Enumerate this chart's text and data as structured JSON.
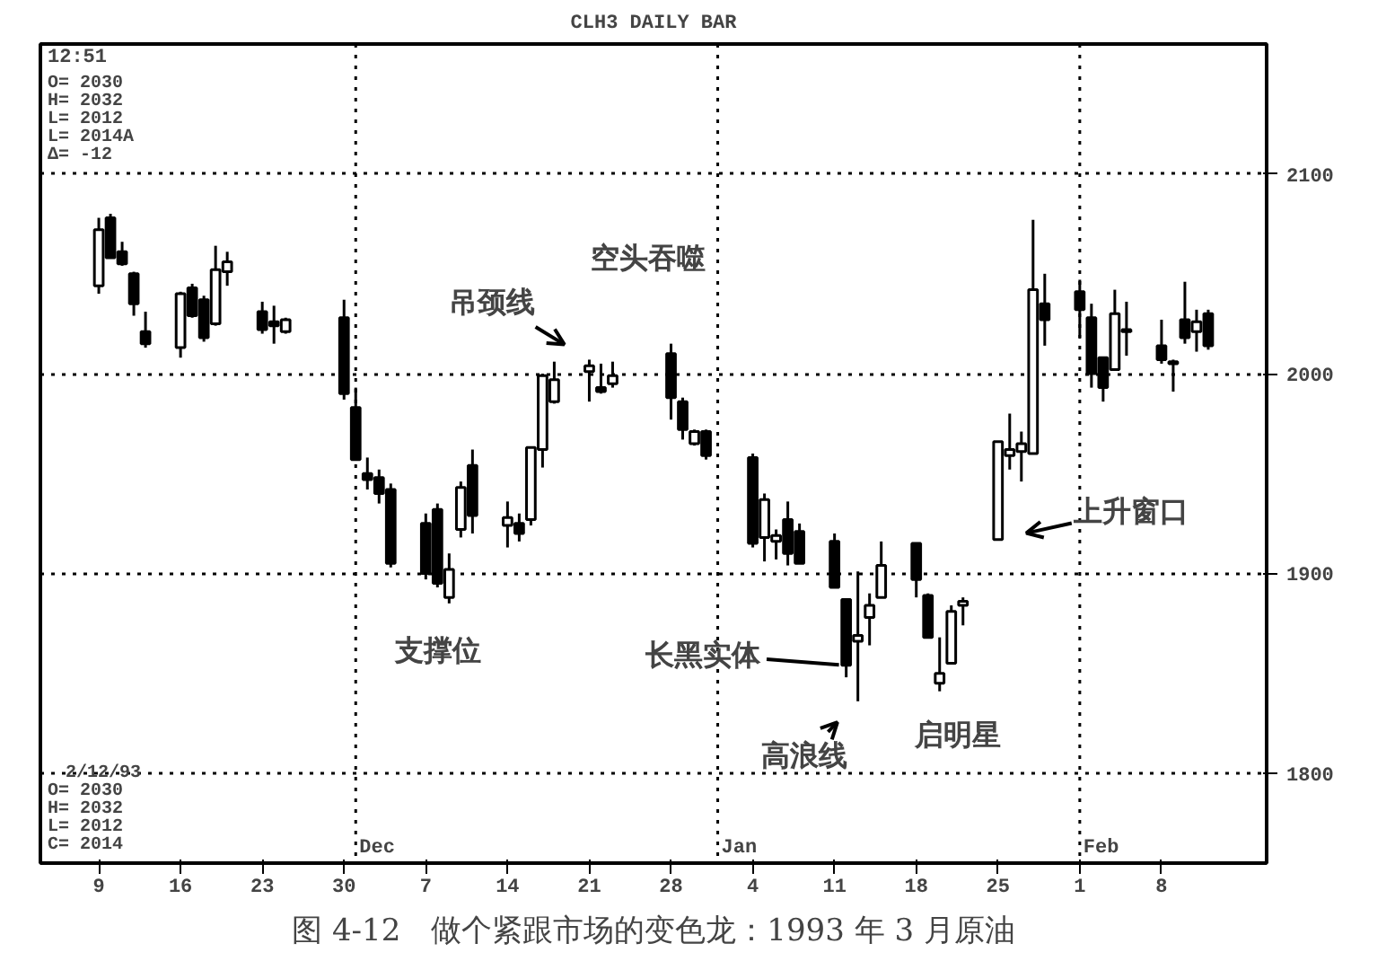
{
  "chart_data": {
    "type": "candlestick",
    "title": "CLH3 DAILY BAR",
    "subtitle": "图 4-12　做个紧跟市场的变色龙：1993 年 3 月原油",
    "x": [
      "1992-11-09",
      "1992-11-10",
      "1992-11-11",
      "1992-11-12",
      "1992-11-13",
      "1992-11-16",
      "1992-11-17",
      "1992-11-18",
      "1992-11-19",
      "1992-11-20",
      "1992-11-23",
      "1992-11-24",
      "1992-11-25",
      "1992-11-30",
      "1992-12-01",
      "1992-12-02",
      "1992-12-03",
      "1992-12-04",
      "1992-12-07",
      "1992-12-08",
      "1992-12-09",
      "1992-12-10",
      "1992-12-11",
      "1992-12-14",
      "1992-12-15",
      "1992-12-16",
      "1992-12-17",
      "1992-12-18",
      "1992-12-21",
      "1992-12-22",
      "1992-12-23",
      "1992-12-28",
      "1992-12-29",
      "1992-12-30",
      "1992-12-31",
      "1993-01-04",
      "1993-01-05",
      "1993-01-06",
      "1993-01-07",
      "1993-01-08",
      "1993-01-11",
      "1993-01-12",
      "1993-01-13",
      "1993-01-14",
      "1993-01-15",
      "1993-01-18",
      "1993-01-19",
      "1993-01-20",
      "1993-01-21",
      "1993-01-22",
      "1993-01-25",
      "1993-01-26",
      "1993-01-27",
      "1993-01-28",
      "1993-01-29",
      "1993-02-01",
      "1993-02-02",
      "1993-02-03",
      "1993-02-04",
      "1993-02-05",
      "1993-02-08",
      "1993-02-09",
      "1993-02-10",
      "1993-02-11",
      "1993-02-12"
    ],
    "ohlc": [
      [
        2044,
        2078,
        2040,
        2072
      ],
      [
        2078,
        2080,
        2058,
        2058
      ],
      [
        2061,
        2066,
        2054,
        2055
      ],
      [
        2050,
        2051,
        2029,
        2035
      ],
      [
        2021,
        2031,
        2013,
        2015
      ],
      [
        2013,
        2041,
        2008,
        2040
      ],
      [
        2043,
        2045,
        2028,
        2029
      ],
      [
        2037,
        2039,
        2016,
        2018
      ],
      [
        2025,
        2064,
        2024,
        2052
      ],
      [
        2051,
        2061,
        2044,
        2056
      ],
      [
        2031,
        2036,
        2020,
        2022
      ],
      [
        2026,
        2034,
        2015,
        2024
      ],
      [
        2021,
        2028,
        2020,
        2027
      ],
      [
        2028,
        2037,
        1987,
        1990
      ],
      [
        1983,
        1993,
        1957,
        1957
      ],
      [
        1950,
        1958,
        1942,
        1947
      ],
      [
        1948,
        1952,
        1935,
        1940
      ],
      [
        1942,
        1945,
        1903,
        1905
      ],
      [
        1925,
        1930,
        1897,
        1900
      ],
      [
        1932,
        1935,
        1893,
        1895
      ],
      [
        1888,
        1910,
        1885,
        1902
      ],
      [
        1922,
        1946,
        1918,
        1943
      ],
      [
        1954,
        1962,
        1920,
        1929
      ],
      [
        1924,
        1936,
        1913,
        1928
      ],
      [
        1925,
        1930,
        1916,
        1920
      ],
      [
        1927,
        1963,
        1924,
        1963
      ],
      [
        1962,
        2000,
        1953,
        1999
      ],
      [
        1986,
        2006,
        1985,
        1997
      ],
      [
        2001,
        2007,
        1986,
        2004
      ],
      [
        1993,
        2005,
        1990,
        1991
      ],
      [
        1995,
        2006,
        1993,
        1999
      ],
      [
        2010,
        2015,
        1977,
        1988
      ],
      [
        1986,
        1988,
        1967,
        1972
      ],
      [
        1965,
        1972,
        1964,
        1971
      ],
      [
        1971,
        1972,
        1957,
        1959
      ],
      [
        1958,
        1960,
        1913,
        1915
      ],
      [
        1918,
        1940,
        1906,
        1937
      ],
      [
        1916,
        1922,
        1907,
        1919
      ],
      [
        1927,
        1936,
        1904,
        1910
      ],
      [
        1921,
        1925,
        1905,
        1905
      ],
      [
        1916,
        1920,
        1893,
        1893
      ],
      [
        1887,
        1887,
        1848,
        1854
      ],
      [
        1866,
        1901,
        1836,
        1869
      ],
      [
        1878,
        1890,
        1864,
        1884
      ],
      [
        1888,
        1916,
        1888,
        1904
      ],
      [
        1915,
        1915,
        1888,
        1897
      ],
      [
        1889,
        1890,
        1868,
        1868
      ],
      [
        1845,
        1868,
        1841,
        1850
      ],
      [
        1855,
        1884,
        1855,
        1881
      ],
      [
        1884,
        1888,
        1874,
        1886
      ],
      [
        1917,
        1966,
        1917,
        1966
      ],
      [
        1959,
        1980,
        1952,
        1962
      ],
      [
        1961,
        1971,
        1946,
        1965
      ],
      [
        1960,
        2077,
        1960,
        2042
      ],
      [
        2035,
        2050,
        2014,
        2027
      ],
      [
        2041,
        2047,
        2018,
        2032
      ],
      [
        2028,
        2035,
        1993,
        2000
      ],
      [
        2008,
        2008,
        1986,
        1993
      ],
      [
        2002,
        2042,
        2002,
        2030
      ],
      [
        2022,
        2036,
        2009,
        2021
      ],
      [
        2014,
        2027,
        2005,
        2007
      ],
      [
        2005,
        2007,
        1991,
        2006
      ],
      [
        2027,
        2046,
        2015,
        2018
      ],
      [
        2021,
        2032,
        2011,
        2026
      ],
      [
        2030,
        2032,
        2012,
        2014
      ]
    ],
    "xlim": [
      "1992-11-04",
      "1993-02-17"
    ],
    "xticks": [
      {
        "value": "1992-11-09",
        "label": "9"
      },
      {
        "value": "1992-11-16",
        "label": "16"
      },
      {
        "value": "1992-11-23",
        "label": "23"
      },
      {
        "value": "1992-11-30",
        "label": "30"
      },
      {
        "value": "1992-12-07",
        "label": "7"
      },
      {
        "value": "1992-12-14",
        "label": "14"
      },
      {
        "value": "1992-12-21",
        "label": "21"
      },
      {
        "value": "1992-12-28",
        "label": "28"
      },
      {
        "value": "1993-01-04",
        "label": "4"
      },
      {
        "value": "1993-01-11",
        "label": "11"
      },
      {
        "value": "1993-01-18",
        "label": "18"
      },
      {
        "value": "1993-01-25",
        "label": "25"
      },
      {
        "value": "1993-02-01",
        "label": "1"
      },
      {
        "value": "1993-02-08",
        "label": "8"
      }
    ],
    "ylim": [
      1755,
      2165
    ],
    "yticks": [
      1800,
      1900,
      2000,
      2100
    ],
    "grid": "y",
    "ref_lines": [
      {
        "axis": "x",
        "value": "1992-12-01",
        "label": "Dec",
        "line_style": "dotted"
      },
      {
        "axis": "x",
        "value": "1993-01-01",
        "label": "Jan",
        "line_style": "dotted"
      },
      {
        "axis": "x",
        "value": "1993-02-01",
        "label": "Feb",
        "line_style": "dotted"
      }
    ],
    "annotations": [
      "12:51",
      "O= 2030",
      "H= 2032",
      "L= 2012",
      "L= 2014A",
      "Δ= -12",
      "2/12/93",
      "O= 2030",
      "H= 2032",
      "L= 2012",
      "C= 2014",
      {
        "text": "吊颈线",
        "x": "1992-12-21",
        "y": 2007
      },
      {
        "text": "空头吞噬",
        "x": "1992-12-28",
        "y": 2015
      },
      {
        "text": "支撑位",
        "x": "1992-12-09",
        "y": 1885
      },
      {
        "text": "长黑实体",
        "x": "1993-01-12",
        "y": 1854
      },
      {
        "text": "高浪线",
        "x": "1993-01-13",
        "y": 1836
      },
      {
        "text": "启明星",
        "x": "1993-01-20",
        "y": 1841
      },
      {
        "text": "上升窗口",
        "x": "1993-01-25",
        "y": 1917
      }
    ]
  }
}
